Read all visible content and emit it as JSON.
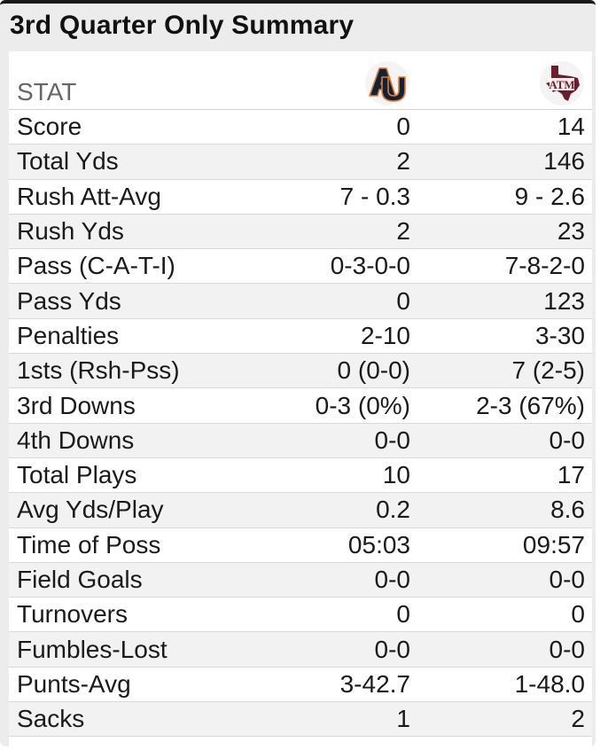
{
  "title": "3rd Quarter Only Summary",
  "header": {
    "stat_label": "STAT",
    "away_logo": "auburn-au-logo-icon",
    "home_logo": "texas-am-atm-logo-icon",
    "away_logo_text": "AU",
    "home_logo_text": "ATM"
  },
  "colors": {
    "auburn_navy": "#0c2340",
    "auburn_orange": "#e87722",
    "texas_am_maroon": "#6b1e2e"
  },
  "rows": [
    {
      "stat": "Score",
      "away": "0",
      "home": "14"
    },
    {
      "stat": "Total Yds",
      "away": "2",
      "home": "146"
    },
    {
      "stat": "Rush Att-Avg",
      "away": "7 - 0.3",
      "home": "9 - 2.6"
    },
    {
      "stat": "Rush Yds",
      "away": "2",
      "home": "23"
    },
    {
      "stat": "Pass (C-A-T-I)",
      "away": "0-3-0-0",
      "home": "7-8-2-0"
    },
    {
      "stat": "Pass Yds",
      "away": "0",
      "home": "123"
    },
    {
      "stat": "Penalties",
      "away": "2-10",
      "home": "3-30"
    },
    {
      "stat": "1sts (Rsh-Pss)",
      "away": "0 (0-0)",
      "home": "7 (2-5)"
    },
    {
      "stat": "3rd Downs",
      "away": "0-3 (0%)",
      "home": "2-3 (67%)"
    },
    {
      "stat": "4th Downs",
      "away": "0-0",
      "home": "0-0"
    },
    {
      "stat": "Total Plays",
      "away": "10",
      "home": "17"
    },
    {
      "stat": "Avg Yds/Play",
      "away": "0.2",
      "home": "8.6"
    },
    {
      "stat": "Time of Poss",
      "away": "05:03",
      "home": "09:57"
    },
    {
      "stat": "Field Goals",
      "away": "0-0",
      "home": "0-0"
    },
    {
      "stat": "Turnovers",
      "away": "0",
      "home": "0"
    },
    {
      "stat": "Fumbles-Lost",
      "away": "0-0",
      "home": "0-0"
    },
    {
      "stat": "Punts-Avg",
      "away": "3-42.7",
      "home": "1-48.0"
    },
    {
      "stat": "Sacks",
      "away": "1",
      "home": "2"
    }
  ]
}
